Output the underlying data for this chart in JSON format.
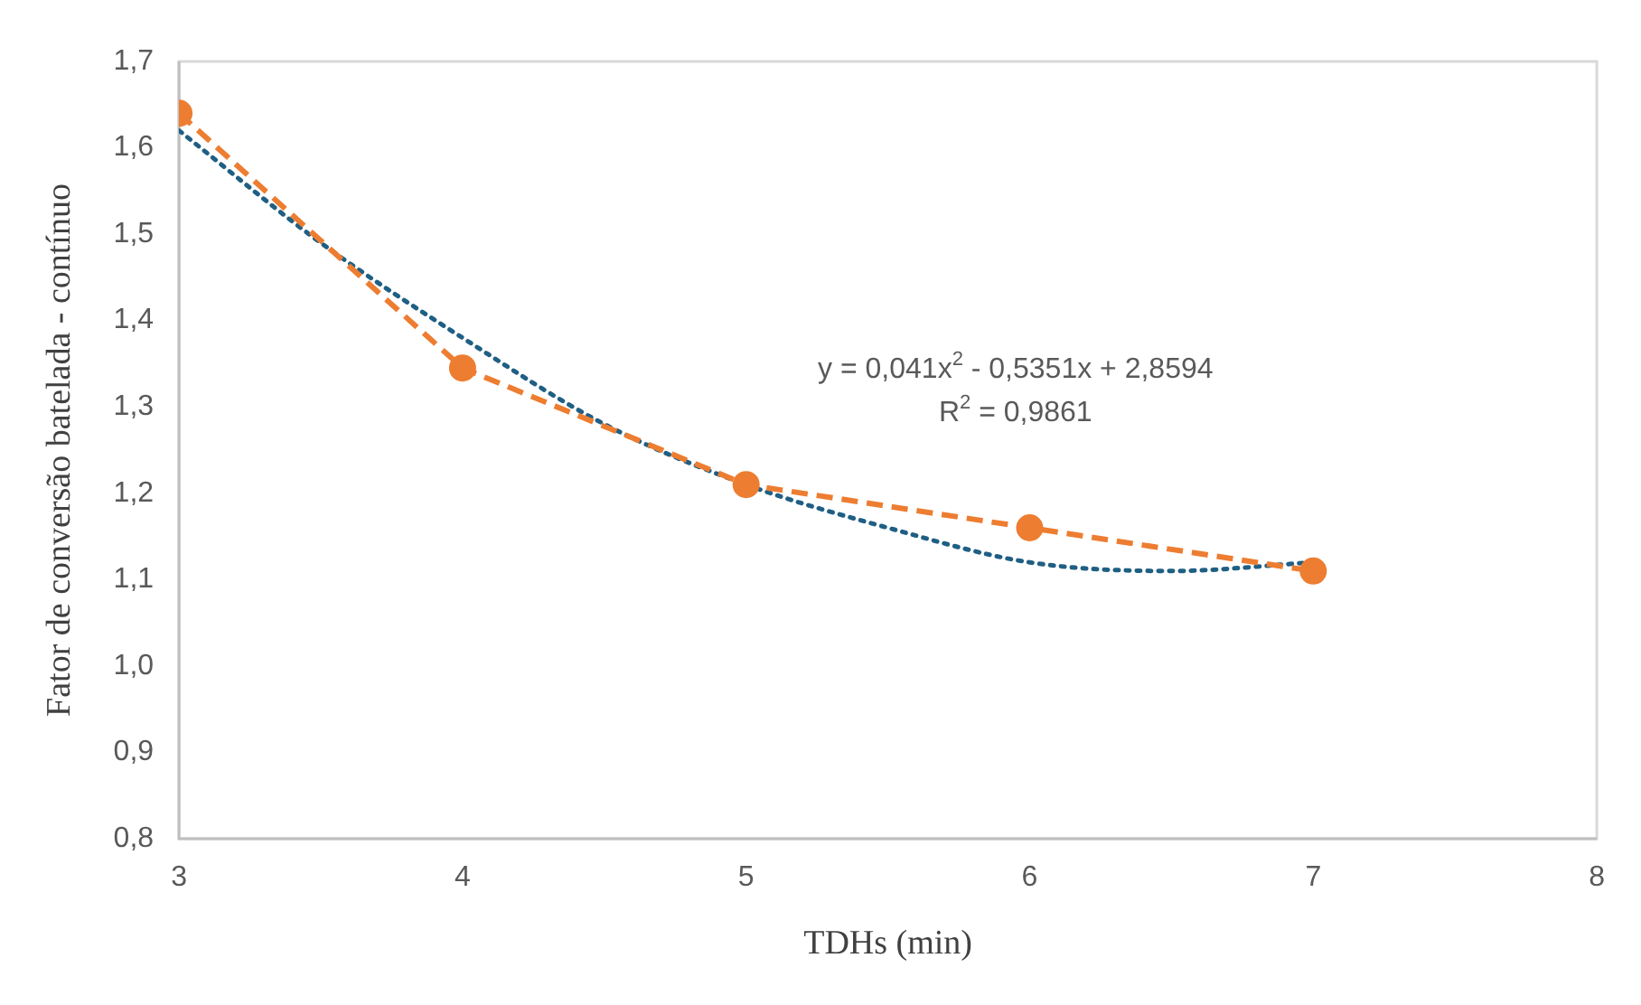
{
  "chart_data": {
    "type": "line",
    "xlabel": "TDHs (min)",
    "ylabel": "Fator de conversão batelada - contínuo",
    "x": [
      3,
      4,
      5,
      6,
      7
    ],
    "series": [
      {
        "color": "#ed7d31",
        "values": [
          1.64,
          1.345,
          1.21,
          1.16,
          1.11
        ],
        "marker": "circle",
        "line_style": "dashed"
      },
      {
        "color": "#1f5f84",
        "x": [
          3,
          3.5,
          4,
          4.5,
          5,
          5.5,
          6,
          6.5,
          7
        ],
        "values": [
          1.62,
          1.49,
          1.38,
          1.28,
          1.21,
          1.16,
          1.12,
          1.11,
          1.12
        ],
        "marker": "none",
        "line_style": "dotted"
      }
    ],
    "xlim": [
      3,
      8
    ],
    "xticks": [
      3,
      4,
      5,
      6,
      7,
      8
    ],
    "ylim": [
      0.8,
      1.7
    ],
    "yticks": [
      {
        "value": 0.8,
        "label": "0,8"
      },
      {
        "value": 0.9,
        "label": "0,9"
      },
      {
        "value": 1.0,
        "label": "1,0"
      },
      {
        "value": 1.1,
        "label": "1,1"
      },
      {
        "value": 1.2,
        "label": "1,2"
      },
      {
        "value": 1.3,
        "label": "1,3"
      },
      {
        "value": 1.4,
        "label": "1,4"
      },
      {
        "value": 1.5,
        "label": "1,5"
      },
      {
        "value": 1.6,
        "label": "1,6"
      },
      {
        "value": 1.7,
        "label": "1,7"
      }
    ],
    "grid": false,
    "legend": false,
    "annotations": [
      "y = 0,041x$^{2}$ - 0,5351x + 2,8594",
      "R$^{2}$ = 0,9861"
    ]
  }
}
